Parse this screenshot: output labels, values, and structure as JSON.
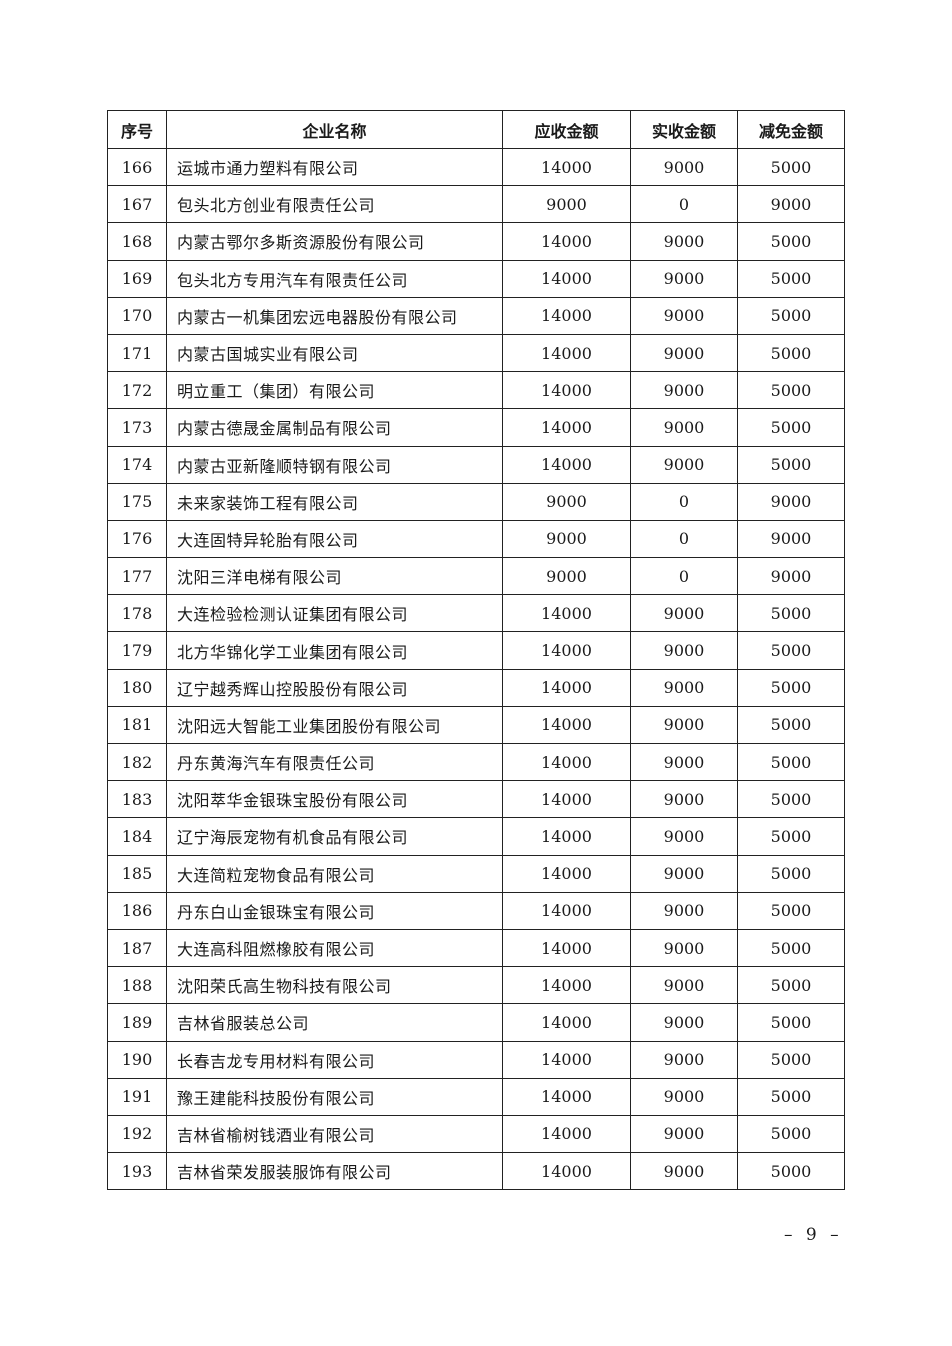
{
  "table": {
    "headers": [
      "序号",
      "企业名称",
      "应收金额",
      "实收金额",
      "减免金额"
    ],
    "rows": [
      [
        "166",
        "运城市通力塑料有限公司",
        "14000",
        "9000",
        "5000"
      ],
      [
        "167",
        "包头北方创业有限责任公司",
        "9000",
        "0",
        "9000"
      ],
      [
        "168",
        "内蒙古鄂尔多斯资源股份有限公司",
        "14000",
        "9000",
        "5000"
      ],
      [
        "169",
        "包头北方专用汽车有限责任公司",
        "14000",
        "9000",
        "5000"
      ],
      [
        "170",
        "内蒙古一机集团宏远电器股份有限公司",
        "14000",
        "9000",
        "5000"
      ],
      [
        "171",
        "内蒙古国城实业有限公司",
        "14000",
        "9000",
        "5000"
      ],
      [
        "172",
        "明立重工（集团）有限公司",
        "14000",
        "9000",
        "5000"
      ],
      [
        "173",
        "内蒙古德晟金属制品有限公司",
        "14000",
        "9000",
        "5000"
      ],
      [
        "174",
        "内蒙古亚新隆顺特钢有限公司",
        "14000",
        "9000",
        "5000"
      ],
      [
        "175",
        "未来家装饰工程有限公司",
        "9000",
        "0",
        "9000"
      ],
      [
        "176",
        "大连固特异轮胎有限公司",
        "9000",
        "0",
        "9000"
      ],
      [
        "177",
        "沈阳三洋电梯有限公司",
        "9000",
        "0",
        "9000"
      ],
      [
        "178",
        "大连检验检测认证集团有限公司",
        "14000",
        "9000",
        "5000"
      ],
      [
        "179",
        "北方华锦化学工业集团有限公司",
        "14000",
        "9000",
        "5000"
      ],
      [
        "180",
        "辽宁越秀辉山控股股份有限公司",
        "14000",
        "9000",
        "5000"
      ],
      [
        "181",
        "沈阳远大智能工业集团股份有限公司",
        "14000",
        "9000",
        "5000"
      ],
      [
        "182",
        "丹东黄海汽车有限责任公司",
        "14000",
        "9000",
        "5000"
      ],
      [
        "183",
        "沈阳萃华金银珠宝股份有限公司",
        "14000",
        "9000",
        "5000"
      ],
      [
        "184",
        "辽宁海辰宠物有机食品有限公司",
        "14000",
        "9000",
        "5000"
      ],
      [
        "185",
        "大连简粒宠物食品有限公司",
        "14000",
        "9000",
        "5000"
      ],
      [
        "186",
        "丹东白山金银珠宝有限公司",
        "14000",
        "9000",
        "5000"
      ],
      [
        "187",
        "大连高科阻燃橡胶有限公司",
        "14000",
        "9000",
        "5000"
      ],
      [
        "188",
        "沈阳荣氏高生物科技有限公司",
        "14000",
        "9000",
        "5000"
      ],
      [
        "189",
        "吉林省服装总公司",
        "14000",
        "9000",
        "5000"
      ],
      [
        "190",
        "长春吉龙专用材料有限公司",
        "14000",
        "9000",
        "5000"
      ],
      [
        "191",
        "豫王建能科技股份有限公司",
        "14000",
        "9000",
        "5000"
      ],
      [
        "192",
        "吉林省榆树钱酒业有限公司",
        "14000",
        "9000",
        "5000"
      ],
      [
        "193",
        "吉林省荣发服装服饰有限公司",
        "14000",
        "9000",
        "5000"
      ]
    ]
  },
  "footer": {
    "page_number": "– 9 –"
  }
}
